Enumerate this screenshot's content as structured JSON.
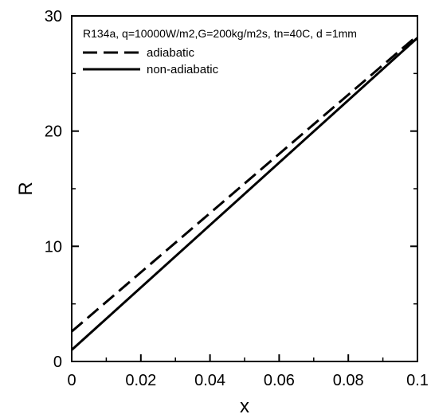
{
  "chart_data": {
    "type": "line",
    "annotation": "R134a, q=10000W/m2,G=200kg/m2s, tn=40C, d =1mm",
    "xlabel": "x",
    "ylabel": "R",
    "xlim": [
      0,
      0.1
    ],
    "ylim": [
      0,
      30
    ],
    "x_ticks": [
      "0",
      "0.02",
      "0.04",
      "0.06",
      "0.08",
      "0.1"
    ],
    "y_ticks": [
      "0",
      "10",
      "20",
      "30"
    ],
    "grid": false,
    "legend_position": "top-left",
    "series": [
      {
        "name": "adiabatic",
        "style": "dashed",
        "color": "#000000",
        "x": [
          0,
          0.1
        ],
        "y": [
          2.6,
          28.3
        ]
      },
      {
        "name": "non-adiabatic",
        "style": "solid",
        "color": "#000000",
        "x": [
          0,
          0.1
        ],
        "y": [
          1.0,
          28.1
        ]
      }
    ]
  }
}
